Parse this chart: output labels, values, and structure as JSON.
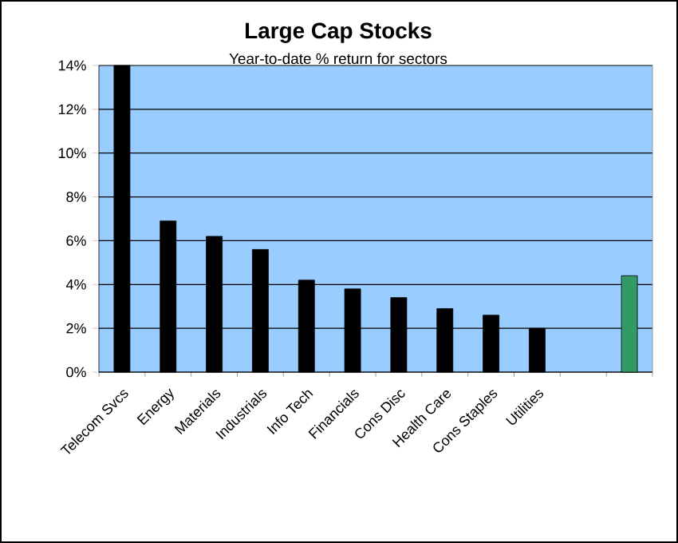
{
  "chart_data": {
    "type": "bar",
    "title": "Large Cap Stocks",
    "subtitle": "Year-to-date % return for sectors",
    "categories": [
      "Telecom Svcs",
      "Energy",
      "Materials",
      "Industrials",
      "Info Tech",
      "Financials",
      "Cons Disc",
      "Health Care",
      "Cons Staples",
      "Utilities",
      null,
      null
    ],
    "values": [
      14.0,
      6.9,
      6.2,
      5.6,
      4.2,
      3.8,
      3.4,
      2.9,
      2.6,
      2.0,
      null,
      4.4
    ],
    "colors": [
      "#000000",
      "#000000",
      "#000000",
      "#000000",
      "#000000",
      "#000000",
      "#000000",
      "#000000",
      "#000000",
      "#000000",
      "#000000",
      "#339966"
    ],
    "ylim": [
      0,
      14
    ],
    "yticks": [
      {
        "value": 0,
        "label": "0%"
      },
      {
        "value": 2,
        "label": "2%"
      },
      {
        "value": 4,
        "label": "4%"
      },
      {
        "value": 6,
        "label": "6%"
      },
      {
        "value": 8,
        "label": "8%"
      },
      {
        "value": 10,
        "label": "10%"
      },
      {
        "value": 12,
        "label": "12%"
      },
      {
        "value": 14,
        "label": "14%"
      }
    ],
    "grid": "y"
  }
}
